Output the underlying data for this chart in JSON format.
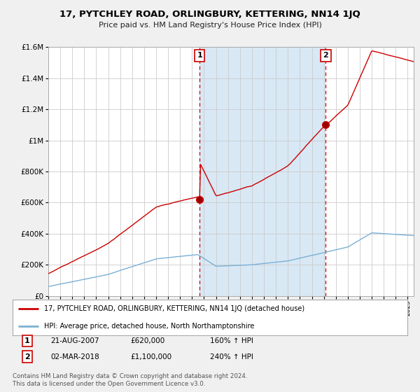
{
  "title": "17, PYTCHLEY ROAD, ORLINGBURY, KETTERING, NN14 1JQ",
  "subtitle": "Price paid vs. HM Land Registry's House Price Index (HPI)",
  "bg_color": "#f0f0f0",
  "plot_bg_color": "#ffffff",
  "shade_color": "#d8e8f5",
  "red_line_color": "#cc0000",
  "blue_line_color": "#7ab0d4",
  "red_label": "17, PYTCHLEY ROAD, ORLINGBURY, KETTERING, NN14 1JQ (detached house)",
  "blue_label": "HPI: Average price, detached house, North Northamptonshire",
  "sale1_date": "21-AUG-2007",
  "sale1_price": 620000,
  "sale1_pct": "160%",
  "sale1_year": 2007.635,
  "sale1_label": "1",
  "sale2_date": "02-MAR-2018",
  "sale2_price": 1100000,
  "sale2_pct": "240%",
  "sale2_year": 2018.165,
  "sale2_label": "2",
  "footnote": "Contains HM Land Registry data © Crown copyright and database right 2024.\nThis data is licensed under the Open Government Licence v3.0.",
  "ylim_max": 1600000,
  "xmin": 1995.0,
  "xmax": 2025.5
}
